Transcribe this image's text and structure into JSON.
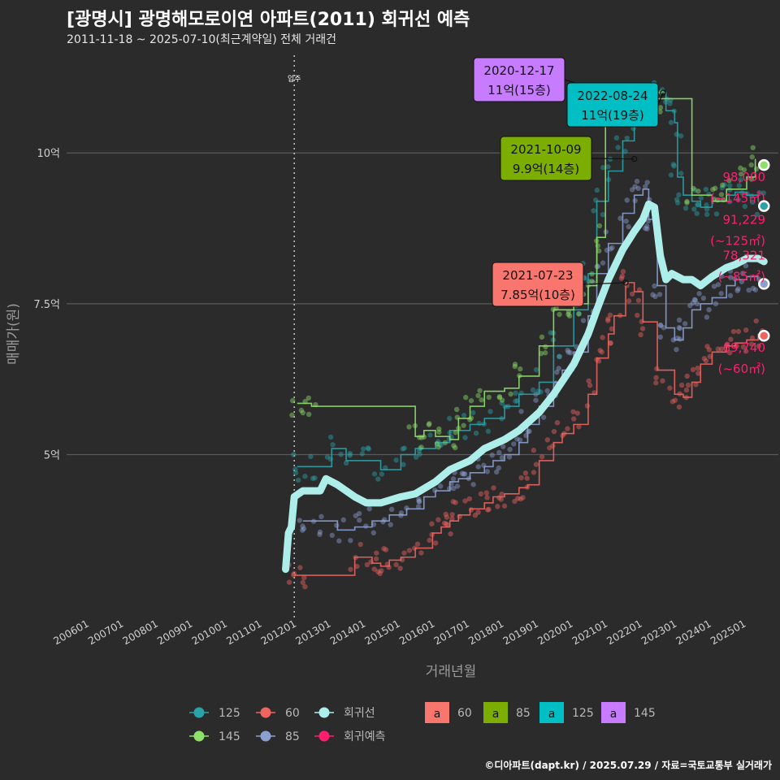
{
  "title": "[광명시] 광명해모로이연 아파트(2011) 회귀선 예측",
  "subtitle": "2011-11-18 ~ 2025-07-10(최근계약일) 전체 거래건",
  "footer": "©디아파트(dapt.kr) / 2025.07.29 / 자료=국토교통부 실거래가",
  "colors": {
    "background": "#2b2b2c",
    "grid": "#5a5a5a",
    "s60": "#f0645f",
    "s85": "#8ca0d0",
    "s125": "#2aa3a8",
    "s145": "#8fe06a",
    "regression": "#aeeeea",
    "forecast": "#ff1f6e",
    "box60": "#f8766d",
    "box85": "#7cae00",
    "box125": "#00bfc4",
    "box145": "#c77cff"
  },
  "chart_data": {
    "type": "scatter+line",
    "xlabel": "거래년월",
    "ylabel": "매매가(원)",
    "x_range": [
      "2005-05",
      "2025-12"
    ],
    "ylim": [
      2.3,
      11.7
    ],
    "y_ticks": [
      {
        "value": 5,
        "label": "5억"
      },
      {
        "value": 7.5,
        "label": "7.5억"
      },
      {
        "value": 10,
        "label": "10억"
      }
    ],
    "x_ticks": [
      "200601",
      "200701",
      "200801",
      "200901",
      "201001",
      "201101",
      "201201",
      "201301",
      "201401",
      "201501",
      "201601",
      "201701",
      "201801",
      "201901",
      "202001",
      "202101",
      "202201",
      "202301",
      "202401",
      "202501"
    ],
    "move_in": {
      "date": "2011-12",
      "label": "입주"
    },
    "series": [
      {
        "name": "60",
        "color_key": "s60",
        "points": [
          [
            "2011-12",
            3.0
          ],
          [
            "2012-03",
            3.0
          ],
          [
            "2013-09",
            3.3
          ],
          [
            "2014-03",
            3.2
          ],
          [
            "2014-06",
            3.15
          ],
          [
            "2014-09",
            3.25
          ],
          [
            "2015-01",
            3.3
          ],
          [
            "2015-06",
            3.45
          ],
          [
            "2015-12",
            3.7
          ],
          [
            "2016-03",
            3.8
          ],
          [
            "2016-06",
            3.9
          ],
          [
            "2016-09",
            4.0
          ],
          [
            "2017-01",
            4.1
          ],
          [
            "2017-06",
            4.2
          ],
          [
            "2017-09",
            4.3
          ],
          [
            "2018-01",
            4.35
          ],
          [
            "2018-06",
            4.45
          ],
          [
            "2018-09",
            4.5
          ],
          [
            "2019-01",
            4.9
          ],
          [
            "2019-06",
            5.2
          ],
          [
            "2019-09",
            5.35
          ],
          [
            "2020-01",
            5.5
          ],
          [
            "2020-06",
            6.0
          ],
          [
            "2020-09",
            6.6
          ],
          [
            "2021-01",
            7.0
          ],
          [
            "2021-03",
            7.3
          ],
          [
            "2021-07",
            7.85
          ],
          [
            "2021-10",
            7.7
          ],
          [
            "2022-01",
            7.2
          ],
          [
            "2022-06",
            6.4
          ],
          [
            "2022-12",
            6.0
          ],
          [
            "2023-03",
            5.95
          ],
          [
            "2023-06",
            6.2
          ],
          [
            "2023-09",
            6.5
          ],
          [
            "2024-01",
            6.7
          ],
          [
            "2024-06",
            6.8
          ],
          [
            "2024-09",
            6.85
          ],
          [
            "2025-01",
            6.9
          ],
          [
            "2025-05",
            7.0
          ]
        ]
      },
      {
        "name": "85",
        "color_key": "s85",
        "points": [
          [
            "2012-03",
            3.9
          ],
          [
            "2012-09",
            3.9
          ],
          [
            "2013-03",
            3.75
          ],
          [
            "2013-09",
            3.8
          ],
          [
            "2014-03",
            3.9
          ],
          [
            "2014-09",
            4.0
          ],
          [
            "2015-03",
            4.1
          ],
          [
            "2015-09",
            4.3
          ],
          [
            "2016-01",
            4.4
          ],
          [
            "2016-06",
            4.55
          ],
          [
            "2016-09",
            4.6
          ],
          [
            "2017-01",
            4.7
          ],
          [
            "2017-06",
            4.8
          ],
          [
            "2017-09",
            4.9
          ],
          [
            "2018-01",
            5.0
          ],
          [
            "2018-06",
            5.2
          ],
          [
            "2018-09",
            5.5
          ],
          [
            "2019-01",
            5.8
          ],
          [
            "2019-06",
            6.2
          ],
          [
            "2019-09",
            6.4
          ],
          [
            "2020-01",
            6.7
          ],
          [
            "2020-06",
            7.3
          ],
          [
            "2020-09",
            8.0
          ],
          [
            "2021-01",
            8.5
          ],
          [
            "2021-06",
            9.0
          ],
          [
            "2021-10",
            9.3
          ],
          [
            "2022-01",
            9.4
          ],
          [
            "2022-03",
            8.9
          ],
          [
            "2022-06",
            7.8
          ],
          [
            "2022-09",
            7.1
          ],
          [
            "2022-12",
            6.9
          ],
          [
            "2023-03",
            7.1
          ],
          [
            "2023-06",
            7.4
          ],
          [
            "2023-09",
            7.5
          ],
          [
            "2024-01",
            7.6
          ],
          [
            "2024-06",
            7.8
          ],
          [
            "2024-09",
            7.9
          ],
          [
            "2025-01",
            7.95
          ],
          [
            "2025-05",
            7.9
          ]
        ]
      },
      {
        "name": "125",
        "color_key": "s125",
        "points": [
          [
            "2012-01",
            4.8
          ],
          [
            "2012-05",
            4.8
          ],
          [
            "2013-01",
            5.1
          ],
          [
            "2013-06",
            4.9
          ],
          [
            "2014-01",
            4.9
          ],
          [
            "2014-06",
            4.75
          ],
          [
            "2015-01",
            5.0
          ],
          [
            "2015-06",
            5.1
          ],
          [
            "2016-01",
            5.2
          ],
          [
            "2016-06",
            5.4
          ],
          [
            "2017-01",
            5.5
          ],
          [
            "2017-06",
            5.6
          ],
          [
            "2018-01",
            5.8
          ],
          [
            "2018-06",
            6.0
          ],
          [
            "2019-01",
            6.2
          ],
          [
            "2019-06",
            6.8
          ],
          [
            "2020-01",
            7.4
          ],
          [
            "2020-06",
            8.0
          ],
          [
            "2020-09",
            9.2
          ],
          [
            "2021-01",
            9.7
          ],
          [
            "2021-06",
            10.2
          ],
          [
            "2021-10",
            10.6
          ],
          [
            "2022-01",
            10.8
          ],
          [
            "2022-06",
            11.0
          ],
          [
            "2022-09",
            10.7
          ],
          [
            "2022-12",
            10.5
          ],
          [
            "2023-01",
            9.6
          ],
          [
            "2023-03",
            9.3
          ],
          [
            "2023-06",
            9.2
          ],
          [
            "2023-09",
            9.1
          ],
          [
            "2024-01",
            9.2
          ],
          [
            "2024-06",
            9.3
          ],
          [
            "2024-09",
            9.35
          ],
          [
            "2025-01",
            9.3
          ],
          [
            "2025-05",
            9.2
          ]
        ]
      },
      {
        "name": "145",
        "color_key": "s145",
        "points": [
          [
            "2012-01",
            5.85
          ],
          [
            "2012-06",
            5.8
          ],
          [
            "2015-06",
            5.3
          ],
          [
            "2015-09",
            5.4
          ],
          [
            "2016-01",
            5.3
          ],
          [
            "2016-06",
            5.25
          ],
          [
            "2016-09",
            5.6
          ],
          [
            "2017-01",
            5.8
          ],
          [
            "2017-06",
            6.05
          ],
          [
            "2018-01",
            6.1
          ],
          [
            "2018-06",
            6.3
          ],
          [
            "2019-01",
            6.8
          ],
          [
            "2019-06",
            7.4
          ],
          [
            "2020-01",
            7.5
          ],
          [
            "2020-06",
            7.8
          ],
          [
            "2020-09",
            8.6
          ],
          [
            "2020-12",
            11.0
          ],
          [
            "2021-06",
            10.7
          ],
          [
            "2022-01",
            10.8
          ],
          [
            "2022-06",
            10.9
          ],
          [
            "2023-06",
            9.3
          ],
          [
            "2024-01",
            9.2
          ],
          [
            "2024-06",
            9.4
          ],
          [
            "2025-01",
            9.6
          ],
          [
            "2025-04",
            9.9
          ]
        ]
      }
    ],
    "regression": [
      [
        "2011-09",
        3.1
      ],
      [
        "2011-10",
        3.7
      ],
      [
        "2011-11",
        3.8
      ],
      [
        "2011-12",
        4.3
      ],
      [
        "2012-03",
        4.4
      ],
      [
        "2012-06",
        4.4
      ],
      [
        "2012-09",
        4.4
      ],
      [
        "2012-11",
        4.6
      ],
      [
        "2013-03",
        4.5
      ],
      [
        "2013-06",
        4.4
      ],
      [
        "2013-09",
        4.3
      ],
      [
        "2014-01",
        4.2
      ],
      [
        "2014-06",
        4.2
      ],
      [
        "2015-01",
        4.3
      ],
      [
        "2015-06",
        4.35
      ],
      [
        "2016-01",
        4.55
      ],
      [
        "2016-06",
        4.75
      ],
      [
        "2017-01",
        4.9
      ],
      [
        "2017-06",
        5.1
      ],
      [
        "2018-01",
        5.25
      ],
      [
        "2018-06",
        5.4
      ],
      [
        "2019-01",
        5.7
      ],
      [
        "2019-06",
        6.0
      ],
      [
        "2020-01",
        6.5
      ],
      [
        "2020-06",
        7.0
      ],
      [
        "2020-09",
        7.4
      ],
      [
        "2021-01",
        7.9
      ],
      [
        "2021-06",
        8.4
      ],
      [
        "2021-10",
        8.7
      ],
      [
        "2022-01",
        8.9
      ],
      [
        "2022-03",
        9.15
      ],
      [
        "2022-05",
        9.1
      ],
      [
        "2022-07",
        8.3
      ],
      [
        "2022-09",
        7.9
      ],
      [
        "2022-11",
        8.0
      ],
      [
        "2023-03",
        7.9
      ],
      [
        "2023-06",
        7.9
      ],
      [
        "2023-09",
        7.8
      ],
      [
        "2024-01",
        7.95
      ],
      [
        "2024-06",
        8.1
      ],
      [
        "2024-09",
        8.15
      ],
      [
        "2025-01",
        8.25
      ],
      [
        "2025-05",
        8.25
      ],
      [
        "2025-07",
        8.2
      ]
    ],
    "forecasts": [
      {
        "size": "145",
        "value": "98,000",
        "area": "(~145㎡)",
        "y": 9.8,
        "color_key": "s145"
      },
      {
        "size": "125",
        "value": "91,229",
        "area": "(~125㎡)",
        "y": 9.12,
        "color_key": "s125"
      },
      {
        "size": "85",
        "value": "78,321",
        "area": "(~85㎡)",
        "y": 7.83,
        "color_key": "s85"
      },
      {
        "size": "60",
        "value": "69,740",
        "area": "(~60㎡)",
        "y": 6.97,
        "color_key": "s60"
      }
    ],
    "forecast_date": "2025-07",
    "peak_labels": [
      {
        "date_label": "2020-12-17",
        "price": "11억(15층)",
        "x": "2020-12",
        "y": 11.0,
        "color_key": "box145"
      },
      {
        "date_label": "2022-08-24",
        "price": "11억(19층)",
        "x": "2022-08",
        "y": 11.0,
        "color_key": "box125"
      },
      {
        "date_label": "2021-10-09",
        "price": "9.9억(14층)",
        "x": "2021-10",
        "y": 9.9,
        "color_key": "box85"
      },
      {
        "date_label": "2021-07-23",
        "price": "7.85억(10층)",
        "x": "2021-07",
        "y": 7.85,
        "color_key": "box60"
      }
    ],
    "legend": {
      "line_items": [
        {
          "label": "125",
          "color_key": "s125"
        },
        {
          "label": "60",
          "color_key": "s60"
        },
        {
          "label": "회귀선",
          "color_key": "regression"
        },
        {
          "label": "145",
          "color_key": "s145"
        },
        {
          "label": "85",
          "color_key": "s85"
        },
        {
          "label": "회귀예측",
          "color_key": "forecast"
        }
      ],
      "box_items": [
        {
          "label": "60",
          "color_key": "box60"
        },
        {
          "label": "85",
          "color_key": "box85"
        },
        {
          "label": "125",
          "color_key": "box125"
        },
        {
          "label": "145",
          "color_key": "box145"
        }
      ],
      "box_glyph": "a"
    }
  }
}
